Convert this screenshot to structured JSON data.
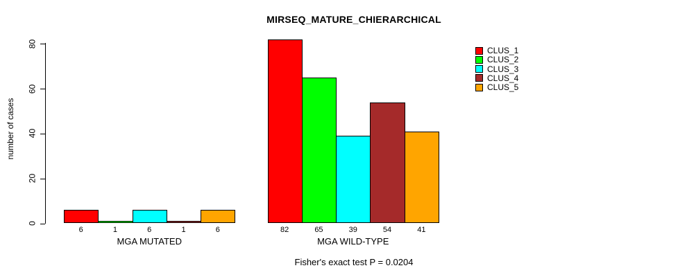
{
  "title": "MIRSEQ_MATURE_CHIERARCHICAL",
  "chart_data": {
    "type": "bar",
    "title": "MIRSEQ_MATURE_CHIERARCHICAL",
    "xlabel": "",
    "ylabel": "number of cases",
    "ylim": [
      0,
      82
    ],
    "yticks": [
      0,
      20,
      40,
      60,
      80
    ],
    "grid": false,
    "legend_position": "right",
    "categories": [
      "MGA MUTATED",
      "MGA WILD-TYPE"
    ],
    "series": [
      {
        "name": "CLUS_1",
        "color": "#FF0000",
        "values": [
          6,
          82
        ]
      },
      {
        "name": "CLUS_2",
        "color": "#00FF00",
        "values": [
          1,
          65
        ]
      },
      {
        "name": "CLUS_3",
        "color": "#00FFFF",
        "values": [
          6,
          39
        ]
      },
      {
        "name": "CLUS_4",
        "color": "#A52A2A",
        "values": [
          1,
          54
        ]
      },
      {
        "name": "CLUS_5",
        "color": "#FFA500",
        "values": [
          6,
          41
        ]
      }
    ],
    "groups": [
      {
        "label": "MGA MUTATED",
        "values": [
          6,
          1,
          6,
          1,
          6
        ],
        "value_labels": [
          "6",
          "1",
          "6",
          "1",
          "6"
        ]
      },
      {
        "label": "MGA WILD-TYPE",
        "values": [
          82,
          65,
          39,
          54,
          41
        ],
        "value_labels": [
          "82",
          "65",
          "39",
          "54",
          "41"
        ]
      }
    ],
    "annotation": "Fisher's exact test P = 0.0204"
  },
  "legend": {
    "items": [
      {
        "label": "CLUS_1",
        "color": "#FF0000"
      },
      {
        "label": "CLUS_2",
        "color": "#00FF00"
      },
      {
        "label": "CLUS_3",
        "color": "#00FFFF"
      },
      {
        "label": "CLUS_4",
        "color": "#A52A2A"
      },
      {
        "label": "CLUS_5",
        "color": "#FFA500"
      }
    ]
  }
}
